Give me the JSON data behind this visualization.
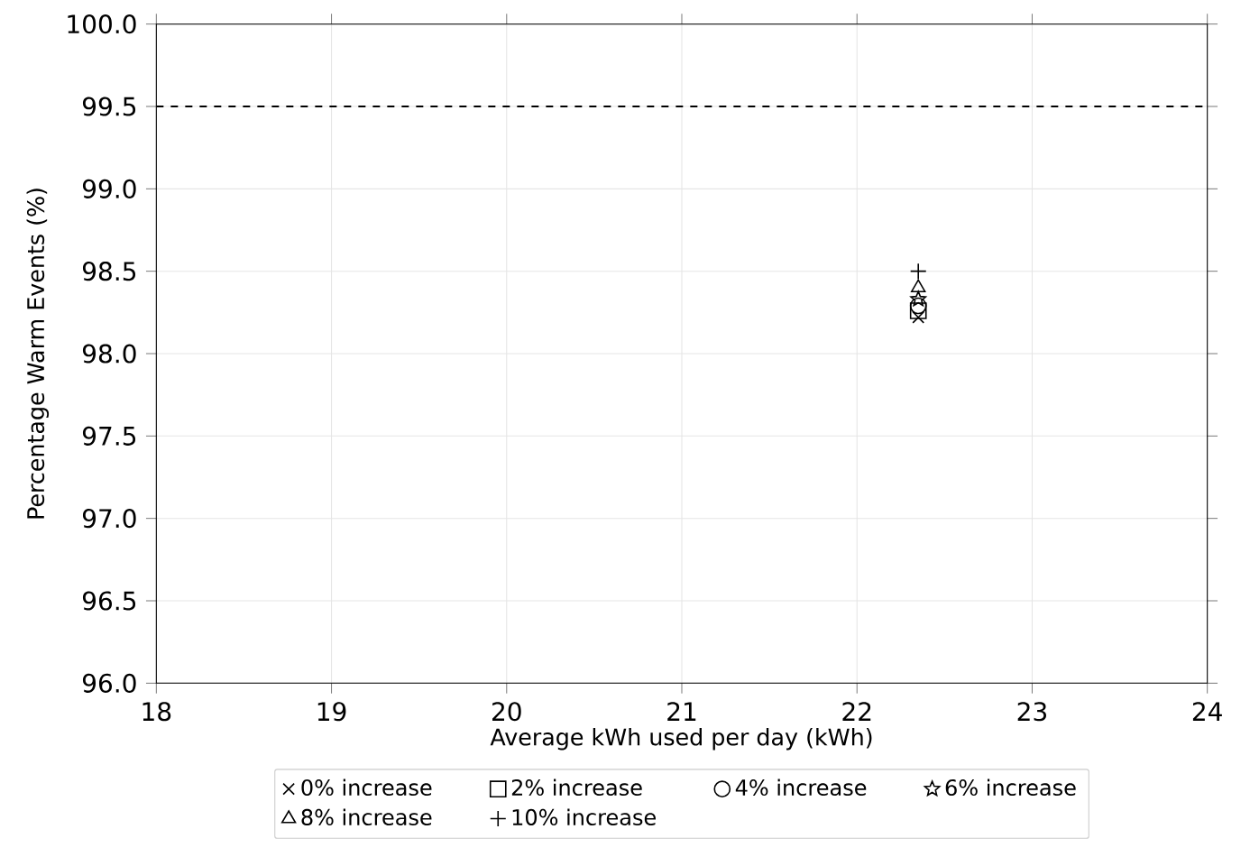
{
  "chart_data": {
    "type": "scatter",
    "xlabel": "Average kWh used per day (kWh)",
    "ylabel": "Percentage Warm Events (%)",
    "xlim": [
      18,
      24
    ],
    "xticks": [
      18,
      19,
      20,
      21,
      22,
      23,
      24
    ],
    "ylim": [
      96,
      100
    ],
    "yticks": [
      {
        "value": 96,
        "label": "96.0"
      },
      {
        "value": 96.5,
        "label": "96.5"
      },
      {
        "value": 97,
        "label": "97.0"
      },
      {
        "value": 97.5,
        "label": "97.5"
      },
      {
        "value": 98,
        "label": "98.0"
      },
      {
        "value": 98.5,
        "label": "98.5"
      },
      {
        "value": 99,
        "label": "99.0"
      },
      {
        "value": 99.5,
        "label": "99.5"
      },
      {
        "value": 100,
        "label": "100.0"
      }
    ],
    "grid": true,
    "legend": "bottom",
    "x": [
      22.35
    ],
    "ref_lines": [
      {
        "axis": "y",
        "value": 99.5,
        "color": "#000000",
        "line_style": "dashed"
      }
    ],
    "series": [
      {
        "name": "0% increase",
        "color": "#000000",
        "marker": "cross",
        "values": [
          98.22
        ]
      },
      {
        "name": "2% increase",
        "color": "#000000",
        "marker": "square",
        "values": [
          98.26
        ]
      },
      {
        "name": "4% increase",
        "color": "#000000",
        "marker": "circle",
        "values": [
          98.29
        ]
      },
      {
        "name": "6% increase",
        "color": "#000000",
        "marker": "star",
        "values": [
          98.33
        ]
      },
      {
        "name": "8% increase",
        "color": "#000000",
        "marker": "triangle",
        "values": [
          98.4
        ]
      },
      {
        "name": "10% increase",
        "color": "#000000",
        "marker": "plus",
        "values": [
          98.5
        ]
      }
    ]
  }
}
